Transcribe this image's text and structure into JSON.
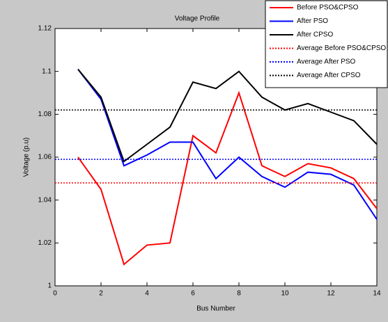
{
  "chart_data": {
    "type": "line",
    "title": "Voltage Profile",
    "x_label": "Bus Number",
    "y_label": "Voltage (p.u)",
    "x": [
      1,
      2,
      3,
      4,
      5,
      6,
      7,
      8,
      9,
      10,
      11,
      12,
      13,
      14
    ],
    "series": [
      {
        "name": "Before PSO&CPSO",
        "color": "#ff0000",
        "style": "solid",
        "values": [
          1.06,
          1.045,
          1.01,
          1.019,
          1.02,
          1.07,
          1.062,
          1.09,
          1.056,
          1.051,
          1.057,
          1.055,
          1.05,
          1.036
        ]
      },
      {
        "name": "After PSO",
        "color": "#0000ff",
        "style": "solid",
        "values": [
          1.101,
          1.087,
          1.056,
          1.061,
          1.067,
          1.067,
          1.05,
          1.06,
          1.051,
          1.046,
          1.053,
          1.052,
          1.047,
          1.031
        ]
      },
      {
        "name": "After CPSO",
        "color": "#000000",
        "style": "solid",
        "values": [
          1.101,
          1.088,
          1.058,
          1.066,
          1.074,
          1.095,
          1.092,
          1.1,
          1.088,
          1.082,
          1.085,
          1.081,
          1.077,
          1.066
        ]
      },
      {
        "name": "Average Before PSO&CPSO",
        "color": "#ff0000",
        "style": "dotted",
        "value": 1.048
      },
      {
        "name": "Average After PSO",
        "color": "#0000ff",
        "style": "dotted",
        "value": 1.059
      },
      {
        "name": "Average After CPSO",
        "color": "#000000",
        "style": "dotted",
        "value": 1.082
      }
    ],
    "xlim": [
      0,
      14
    ],
    "xticks": [
      0,
      2,
      4,
      6,
      8,
      10,
      12,
      14
    ],
    "ylim": [
      1,
      1.12
    ],
    "yticks": [
      1,
      1.02,
      1.04,
      1.06,
      1.08,
      1.1,
      1.12
    ],
    "legend": "top-right"
  }
}
